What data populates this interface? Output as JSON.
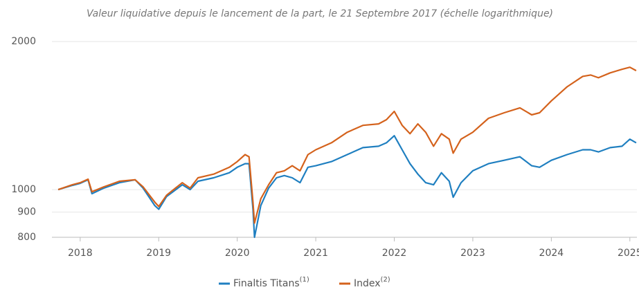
{
  "chart_data": {
    "type": "line",
    "title": "Valeur liquidative depuis le lancement de la part, le 21 Septembre 2017 (échelle logarithmique)",
    "log_scale": true,
    "grid": true,
    "legend": "bottom",
    "xlim": [
      2017.64,
      2025.09
    ],
    "xticks": [
      2018,
      2019,
      2020,
      2021,
      2022,
      2023,
      2024,
      2025
    ],
    "ylim": [
      800,
      2000
    ],
    "yticks": [
      800,
      900,
      1000,
      2000
    ],
    "x": [
      2017.72,
      2017.9,
      2018.0,
      2018.1,
      2018.15,
      2018.3,
      2018.5,
      2018.7,
      2018.8,
      2018.95,
      2019.0,
      2019.1,
      2019.3,
      2019.4,
      2019.5,
      2019.7,
      2019.9,
      2020.0,
      2020.1,
      2020.15,
      2020.2,
      2020.22,
      2020.3,
      2020.4,
      2020.5,
      2020.6,
      2020.7,
      2020.8,
      2020.9,
      2021.0,
      2021.2,
      2021.4,
      2021.6,
      2021.8,
      2021.9,
      2022.0,
      2022.1,
      2022.2,
      2022.3,
      2022.4,
      2022.5,
      2022.6,
      2022.7,
      2022.75,
      2022.85,
      2023.0,
      2023.2,
      2023.4,
      2023.6,
      2023.75,
      2023.85,
      2024.0,
      2024.2,
      2024.4,
      2024.5,
      2024.6,
      2024.75,
      2024.9,
      2025.0,
      2025.08
    ],
    "series": [
      {
        "name": "Finaltis Titans",
        "footnote": "(1)",
        "color": "#1f7fc0",
        "values": [
          1000,
          1020,
          1030,
          1047,
          981,
          1007,
          1033,
          1047,
          1007,
          928,
          912,
          968,
          1023,
          1000,
          1040,
          1057,
          1082,
          1110,
          1129,
          1129,
          912,
          800,
          928,
          1007,
          1057,
          1068,
          1057,
          1033,
          1110,
          1118,
          1140,
          1178,
          1217,
          1225,
          1245,
          1287,
          1205,
          1129,
          1075,
          1033,
          1023,
          1082,
          1040,
          965,
          1033,
          1092,
          1129,
          1147,
          1166,
          1118,
          1110,
          1147,
          1178,
          1205,
          1205,
          1193,
          1217,
          1225,
          1266,
          1245
        ]
      },
      {
        "name": "Index",
        "footnote": "(2)",
        "color": "#d4621c",
        "values": [
          1000,
          1023,
          1033,
          1050,
          990,
          1013,
          1040,
          1047,
          1013,
          943,
          924,
          974,
          1033,
          1007,
          1057,
          1075,
          1110,
          1140,
          1178,
          1166,
          943,
          855,
          958,
          1023,
          1082,
          1092,
          1118,
          1092,
          1178,
          1205,
          1245,
          1308,
          1351,
          1360,
          1387,
          1442,
          1351,
          1299,
          1360,
          1308,
          1225,
          1299,
          1266,
          1186,
          1266,
          1308,
          1396,
          1433,
          1466,
          1419,
          1433,
          1515,
          1618,
          1699,
          1710,
          1688,
          1727,
          1756,
          1773,
          1745
        ]
      }
    ]
  }
}
